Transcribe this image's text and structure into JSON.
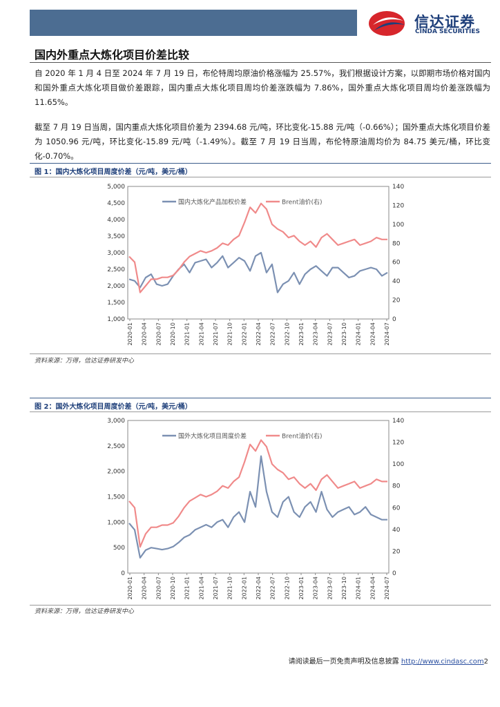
{
  "header": {
    "logo_cn": "信达证券",
    "logo_en": "CINDA SECURITIES",
    "colors": {
      "bar": "#4c6d92",
      "logo_red": "#d7262c",
      "logo_blue": "#1e3f7a"
    }
  },
  "section_title": "国内外重点大炼化项目价差比较",
  "paragraphs": [
    "自 2020 年 1 月 4 日至 2024 年 7 月 19 日，布伦特周均原油价格涨幅为 25.57%，我们根据设计方案，以即期市场价格对国内和国外重点大炼化项目做价差跟踪，国内重点大炼化项目周均价差涨跌幅为 7.86%，国外重点大炼化项目周均价差涨跌幅为 11.65%。",
    "截至 7 月 19 日当周，国内重点大炼化项目价差为 2394.68 元/吨，环比变化-15.88 元/吨（-0.66%）；国外重点大炼化项目价差为 1050.96 元/吨，环比变化-15.89 元/吨（-1.49%）。截至 7 月 19 日当周，布伦特原油周均价为 84.75 美元/桶，环比变化-0.70%。"
  ],
  "figures": [
    {
      "caption": "图 1：国内大炼化项目周度价差（元/吨，美元/桶）",
      "source": "资料来源：万得，信达证券研发中心"
    },
    {
      "caption": "图 2：国外大炼化项目周度价差（元/吨，美元/桶）",
      "source": "资料来源：万得，信达证券研发中心"
    }
  ],
  "chart_data": [
    {
      "type": "line",
      "x_labels": [
        "2020-01",
        "2020-04",
        "2020-07",
        "2020-10",
        "2021-01",
        "2021-04",
        "2021-07",
        "2021-10",
        "2022-01",
        "2022-04",
        "2022-07",
        "2022-10",
        "2023-01",
        "2023-04",
        "2023-07",
        "2023-10",
        "2024-01",
        "2024-04",
        "2024-07"
      ],
      "ylim_left": [
        1000,
        5000
      ],
      "yticks_left": [
        "1,000",
        "1,500",
        "2,000",
        "2,500",
        "3,000",
        "3,500",
        "4,000",
        "4,500",
        "5,000"
      ],
      "ylim_right": [
        0,
        140
      ],
      "yticks_right": [
        "0",
        "20",
        "40",
        "60",
        "80",
        "100",
        "120",
        "140"
      ],
      "series": [
        {
          "name": "国内大炼化产品加权价差",
          "axis": "left",
          "color": "#7b90b2",
          "values": [
            2200,
            2150,
            1950,
            2250,
            2350,
            2050,
            2000,
            2050,
            2300,
            2500,
            2650,
            2400,
            2700,
            2750,
            2800,
            2550,
            2700,
            2900,
            2550,
            2700,
            2850,
            2750,
            2450,
            2900,
            3000,
            2400,
            2650,
            1800,
            2050,
            2150,
            2400,
            2050,
            2350,
            2500,
            2600,
            2450,
            2300,
            2550,
            2550,
            2400,
            2250,
            2300,
            2450,
            2500,
            2550,
            2500,
            2300,
            2400
          ]
        },
        {
          "name": "Brent油价(右)",
          "axis": "right",
          "color": "#f08a8a",
          "values": [
            66,
            60,
            28,
            35,
            42,
            42,
            44,
            44,
            46,
            52,
            60,
            66,
            69,
            72,
            70,
            72,
            75,
            80,
            78,
            84,
            88,
            102,
            118,
            112,
            122,
            116,
            100,
            95,
            92,
            86,
            88,
            82,
            78,
            82,
            76,
            86,
            90,
            84,
            78,
            80,
            82,
            84,
            78,
            80,
            82,
            86,
            84,
            84
          ]
        }
      ]
    },
    {
      "type": "line",
      "x_labels": [
        "2020-01",
        "2020-04",
        "2020-07",
        "2020-10",
        "2021-01",
        "2021-04",
        "2021-07",
        "2021-10",
        "2022-01",
        "2022-04",
        "2022-07",
        "2022-10",
        "2023-01",
        "2023-04",
        "2023-07",
        "2023-10",
        "2024-01",
        "2024-04",
        "2024-07"
      ],
      "ylim_left": [
        0,
        3000
      ],
      "yticks_left": [
        "0",
        "500",
        "1,000",
        "1,500",
        "2,000",
        "2,500",
        "3,000"
      ],
      "ylim_right": [
        0,
        140
      ],
      "yticks_right": [
        "0",
        "20",
        "40",
        "60",
        "80",
        "100",
        "120",
        "140"
      ],
      "series": [
        {
          "name": "国外大炼化项目周度价差",
          "axis": "left",
          "color": "#7b90b2",
          "values": [
            980,
            850,
            300,
            450,
            500,
            480,
            460,
            480,
            520,
            600,
            700,
            750,
            850,
            900,
            950,
            900,
            1000,
            1050,
            900,
            1100,
            1200,
            1000,
            1600,
            1300,
            2300,
            1600,
            1200,
            1100,
            1400,
            1500,
            1200,
            1100,
            1300,
            1400,
            1200,
            1600,
            1250,
            1100,
            1200,
            1250,
            1300,
            1150,
            1200,
            1300,
            1150,
            1100,
            1050,
            1050
          ]
        },
        {
          "name": "Brent油价(右)",
          "axis": "right",
          "color": "#f08a8a",
          "values": [
            66,
            60,
            24,
            36,
            42,
            42,
            44,
            44,
            46,
            52,
            60,
            66,
            69,
            72,
            70,
            72,
            75,
            80,
            78,
            84,
            88,
            102,
            118,
            112,
            122,
            116,
            100,
            95,
            92,
            86,
            88,
            82,
            78,
            82,
            76,
            86,
            90,
            84,
            78,
            80,
            82,
            84,
            78,
            80,
            82,
            86,
            84,
            84
          ]
        }
      ]
    }
  ],
  "footer": {
    "text": "请阅读最后一页免责声明及信息披露",
    "url": "http://www.cindasc.com",
    "page": "2"
  }
}
